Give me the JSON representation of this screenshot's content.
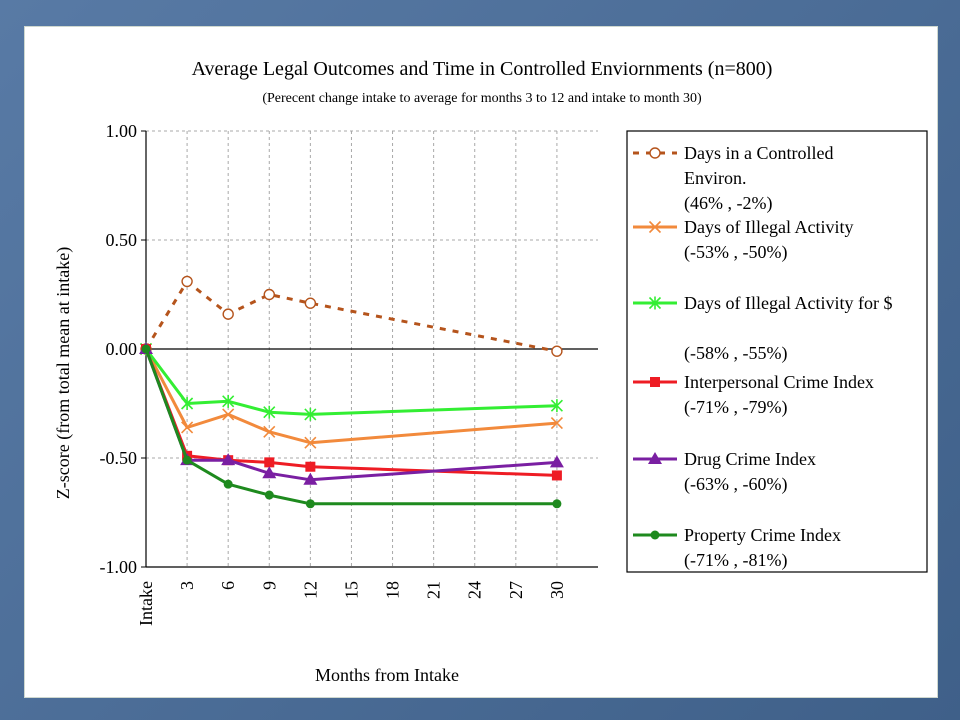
{
  "chart_data": {
    "type": "line",
    "title": "Average Legal Outcomes and Time in Controlled Enviornments (n=800)",
    "subtitle": "(Perecent change intake to average for months 3 to 12 and intake to month 30)",
    "xlabel": "Months from Intake",
    "ylabel": "Z-score (from total mean at intake)",
    "ylim": [
      -1.0,
      1.0
    ],
    "yticks": [
      "1.00",
      "0.50",
      "0.00",
      "-0.50",
      "-1.00"
    ],
    "ytick_values": [
      1.0,
      0.5,
      0.0,
      -0.5,
      -1.0
    ],
    "x_categories": [
      "Intake",
      "3",
      "6",
      "9",
      "12",
      "15",
      "18",
      "21",
      "24",
      "27",
      "30"
    ],
    "x_index_values": [
      0,
      3,
      6,
      9,
      12,
      15,
      18,
      21,
      24,
      27,
      30
    ],
    "grid": true,
    "legend_position": "right",
    "series": [
      {
        "key": "controlled",
        "name_lines": [
          "Days in a Controlled",
          "Environ.",
          "(46% , -2%)"
        ],
        "color": "#b5541c",
        "dash": true,
        "marker": "open-circle",
        "points": [
          [
            0,
            0.0
          ],
          [
            3,
            0.31
          ],
          [
            6,
            0.16
          ],
          [
            9,
            0.25
          ],
          [
            12,
            0.21
          ],
          [
            30,
            -0.01
          ]
        ]
      },
      {
        "key": "illegal",
        "name_lines": [
          "Days of Illegal Activity",
          "(-53% , -50%)"
        ],
        "color": "#f28a3c",
        "dash": false,
        "marker": "x",
        "points": [
          [
            0,
            0.0
          ],
          [
            3,
            -0.36
          ],
          [
            6,
            -0.3
          ],
          [
            9,
            -0.38
          ],
          [
            12,
            -0.43
          ],
          [
            30,
            -0.34
          ]
        ]
      },
      {
        "key": "illegal_money",
        "name_lines": [
          "Days of Illegal Activity for $",
          "",
          "(-58% , -55%)"
        ],
        "color": "#33ee33",
        "dash": false,
        "marker": "star",
        "points": [
          [
            0,
            0.0
          ],
          [
            3,
            -0.25
          ],
          [
            6,
            -0.24
          ],
          [
            9,
            -0.29
          ],
          [
            12,
            -0.3
          ],
          [
            30,
            -0.26
          ]
        ]
      },
      {
        "key": "interpersonal",
        "name_lines": [
          "Interpersonal Crime Index",
          "(-71% , -79%)"
        ],
        "color": "#ee1c24",
        "dash": false,
        "marker": "square",
        "points": [
          [
            0,
            0.0
          ],
          [
            3,
            -0.49
          ],
          [
            6,
            -0.51
          ],
          [
            9,
            -0.52
          ],
          [
            12,
            -0.54
          ],
          [
            30,
            -0.58
          ]
        ]
      },
      {
        "key": "drug",
        "name_lines": [
          "Drug Crime Index",
          "(-63% , -60%)"
        ],
        "color": "#7a1fa2",
        "dash": false,
        "marker": "triangle",
        "points": [
          [
            0,
            0.0
          ],
          [
            3,
            -0.51
          ],
          [
            6,
            -0.51
          ],
          [
            9,
            -0.57
          ],
          [
            12,
            -0.6
          ],
          [
            30,
            -0.52
          ]
        ]
      },
      {
        "key": "property",
        "name_lines": [
          "Property Crime Index",
          "(-71% , -81%)"
        ],
        "color": "#1e8a1e",
        "dash": false,
        "marker": "dot",
        "points": [
          [
            0,
            0.0
          ],
          [
            3,
            -0.51
          ],
          [
            6,
            -0.62
          ],
          [
            9,
            -0.67
          ],
          [
            12,
            -0.71
          ],
          [
            30,
            -0.71
          ]
        ]
      }
    ]
  }
}
